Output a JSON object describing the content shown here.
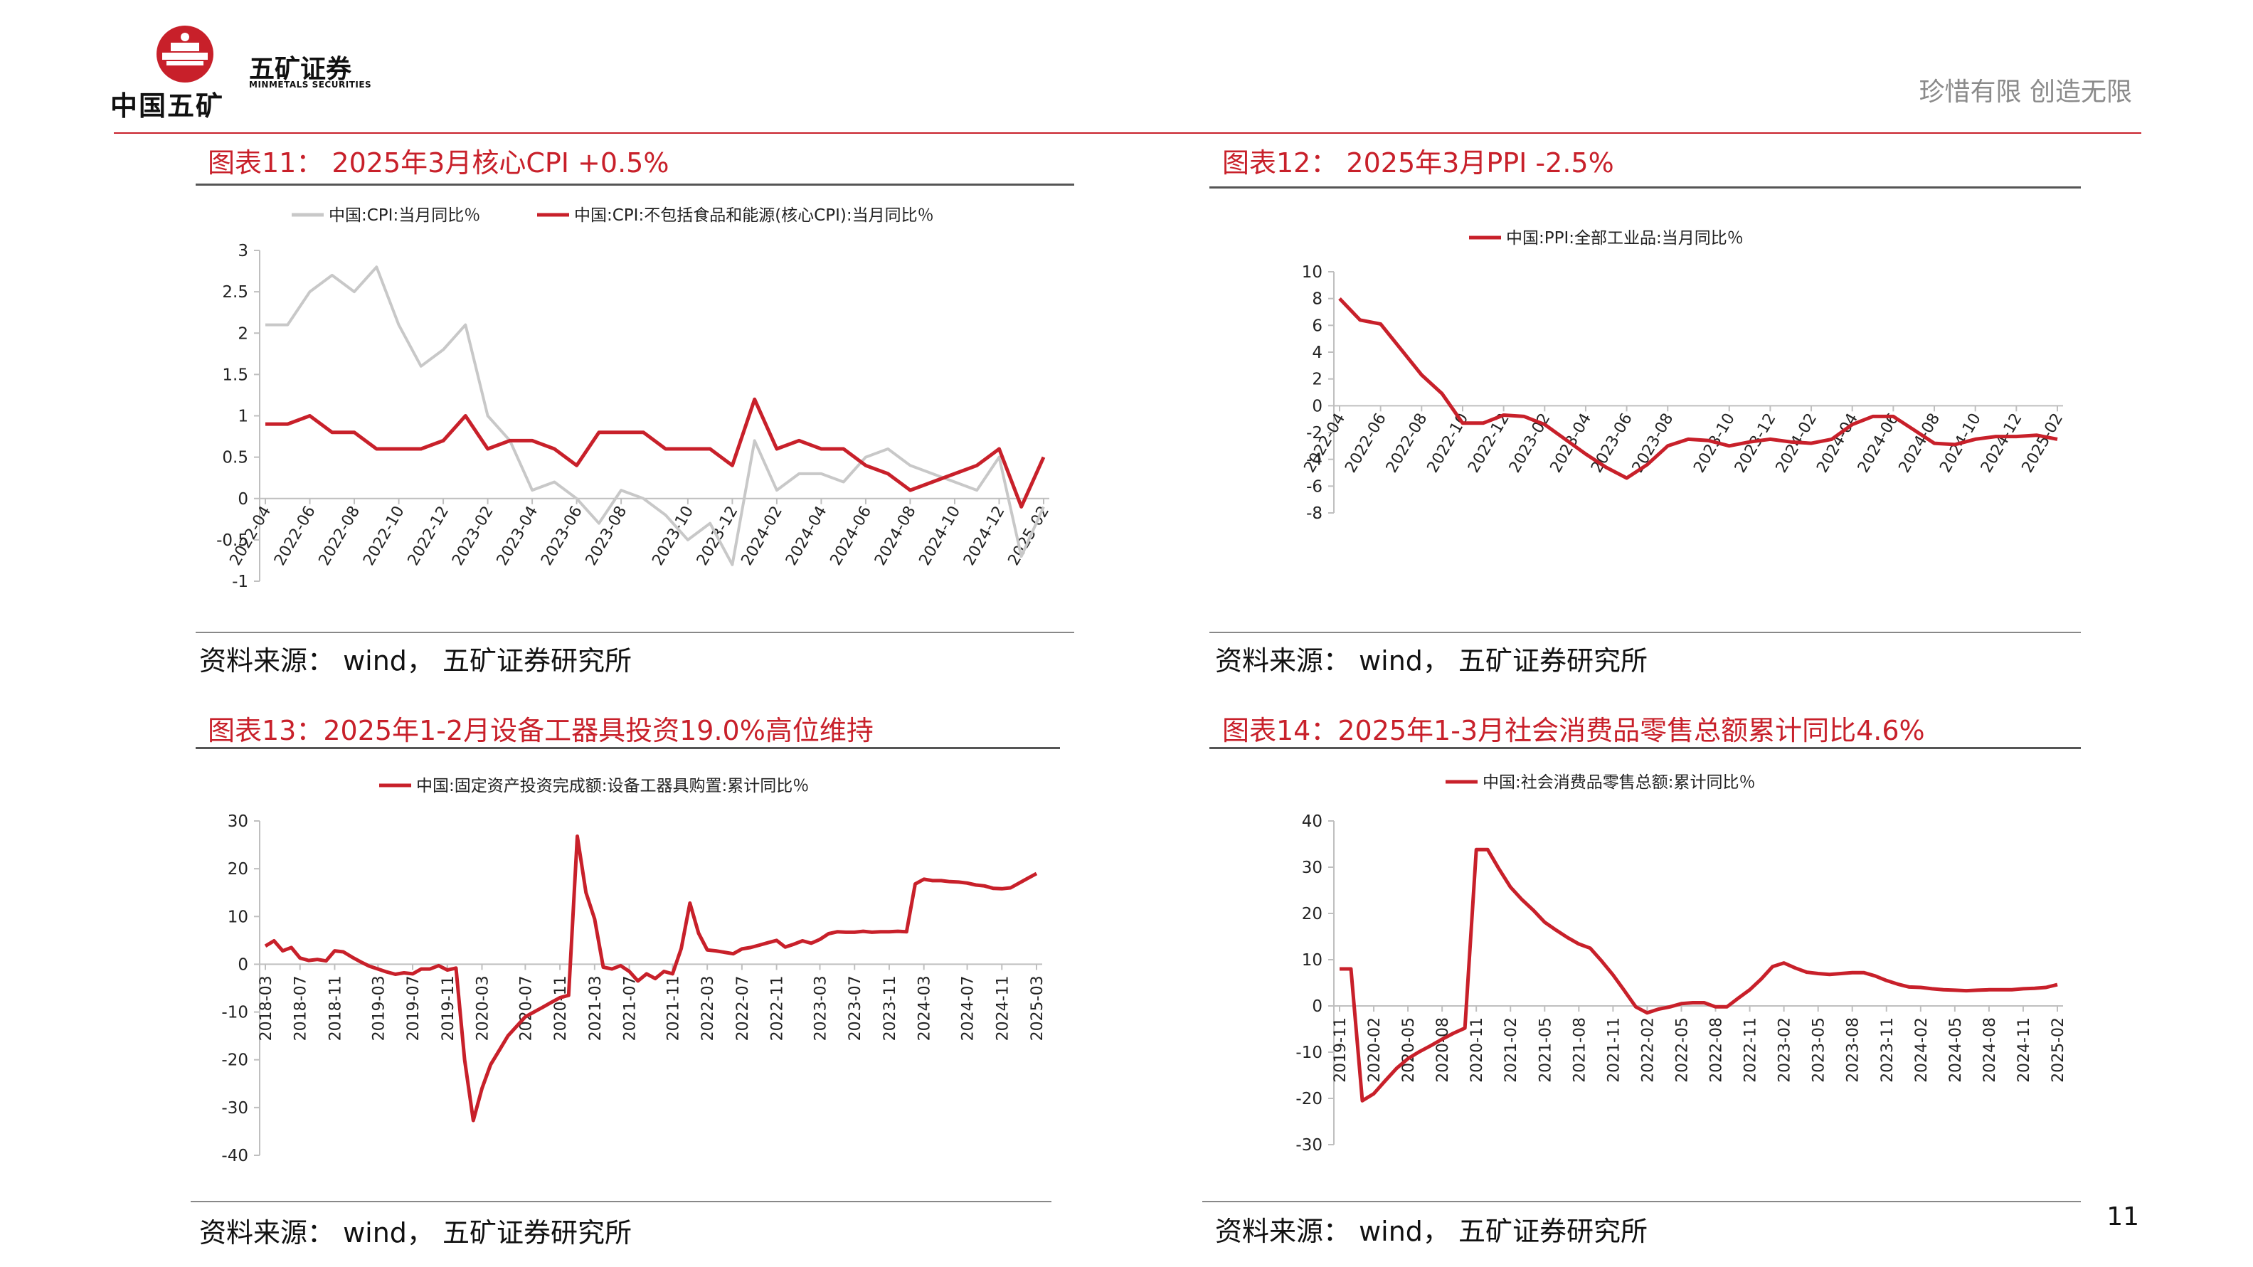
{
  "header": {
    "logo_cn": "中国五矿",
    "brand": "五矿证券",
    "brand_en": "MINMETALS SECURITIES",
    "slogan": "珍惜有限  创造无限",
    "page_number": "11",
    "accent_color": "#c8202a"
  },
  "panels": [
    {
      "title": "图表11： 2025年3月核心CPI +0.5%",
      "source": "资料来源： wind， 五矿证券研究所"
    },
    {
      "title": "图表12： 2025年3月PPI -2.5%",
      "source": "资料来源： wind， 五矿证券研究所"
    },
    {
      "title": "图表13：2025年1-2月设备工器具投资19.0%高位维持",
      "source": "资料来源： wind， 五矿证券研究所"
    },
    {
      "title": "图表14：2025年1-3月社会消费品零售总额累计同比4.6%",
      "source": "资料来源： wind， 五矿证券研究所"
    }
  ],
  "chart_data": [
    {
      "type": "line",
      "ylim": [
        -1,
        3
      ],
      "yticks": [
        "3",
        "2.5",
        "2",
        "1.5",
        "1",
        "0.5",
        "0",
        "-0.5",
        "-1"
      ],
      "x": [
        "2022-04",
        "2022-05",
        "2022-06",
        "2022-07",
        "2022-08",
        "2022-09",
        "2022-10",
        "2022-11",
        "2022-12",
        "2023-01",
        "2023-02",
        "2023-03",
        "2023-04",
        "2023-05",
        "2023-06",
        "2023-07",
        "2023-08",
        "2023-09",
        "2023-10",
        "2023-11",
        "2023-12",
        "2024-01",
        "2024-02",
        "2024-03",
        "2024-04",
        "2024-05",
        "2024-06",
        "2024-07",
        "2024-08",
        "2024-09",
        "2024-10",
        "2024-11",
        "2024-12",
        "2025-01",
        "2025-02",
        "2025-03"
      ],
      "xtick_labels": [
        "2022-04",
        "2022-06",
        "2022-08",
        "2022-10",
        "2022-12",
        "2023-02",
        "2023-04",
        "2023-06",
        "2023-08",
        "2023-10",
        "2023-12",
        "2024-02",
        "2024-04",
        "2024-06",
        "2024-08",
        "2024-10",
        "2024-12",
        "2025-02"
      ],
      "series": [
        {
          "name": "中国:CPI:当月同比％",
          "color": "#c8c8c8",
          "values": [
            2.1,
            2.1,
            2.5,
            2.7,
            2.5,
            2.8,
            2.1,
            1.6,
            1.8,
            2.1,
            1.0,
            0.7,
            0.1,
            0.2,
            0.0,
            -0.3,
            0.1,
            0.0,
            -0.2,
            -0.5,
            -0.3,
            -0.8,
            0.7,
            0.1,
            0.3,
            0.3,
            0.2,
            0.5,
            0.6,
            0.4,
            0.3,
            0.2,
            0.1,
            0.5,
            -0.7,
            -0.1
          ]
        },
        {
          "name": "中国:CPI:不包括食品和能源(核心CPI):当月同比％",
          "color": "#c8202a",
          "values": [
            0.9,
            0.9,
            1.0,
            0.8,
            0.8,
            0.6,
            0.6,
            0.6,
            0.7,
            1.0,
            0.6,
            0.7,
            0.7,
            0.6,
            0.4,
            0.8,
            0.8,
            0.8,
            0.6,
            0.6,
            0.6,
            0.4,
            1.2,
            0.6,
            0.7,
            0.6,
            0.6,
            0.4,
            0.3,
            0.1,
            0.2,
            0.3,
            0.4,
            0.6,
            -0.1,
            0.5
          ]
        }
      ]
    },
    {
      "type": "line",
      "ylim": [
        -8,
        10
      ],
      "yticks": [
        "10",
        "8",
        "6",
        "4",
        "2",
        "0",
        "-2",
        "-4",
        "-6",
        "-8"
      ],
      "x": [
        "2022-04",
        "2022-05",
        "2022-06",
        "2022-07",
        "2022-08",
        "2022-09",
        "2022-10",
        "2022-11",
        "2022-12",
        "2023-01",
        "2023-02",
        "2023-03",
        "2023-04",
        "2023-05",
        "2023-06",
        "2023-07",
        "2023-08",
        "2023-09",
        "2023-10",
        "2023-11",
        "2023-12",
        "2024-01",
        "2024-02",
        "2024-03",
        "2024-04",
        "2024-05",
        "2024-06",
        "2024-07",
        "2024-08",
        "2024-09",
        "2024-10",
        "2024-11",
        "2024-12",
        "2025-01",
        "2025-02",
        "2025-03"
      ],
      "xtick_labels": [
        "2022-04",
        "2022-06",
        "2022-08",
        "2022-10",
        "2022-12",
        "2023-02",
        "2023-04",
        "2023-06",
        "2023-08",
        "2023-10",
        "2023-12",
        "2024-02",
        "2024-04",
        "2024-06",
        "2024-08",
        "2024-10",
        "2024-12",
        "2025-02"
      ],
      "series": [
        {
          "name": "中国:PPI:全部工业品:当月同比％",
          "color": "#c8202a",
          "values": [
            8.0,
            6.4,
            6.1,
            4.2,
            2.3,
            0.9,
            -1.3,
            -1.3,
            -0.7,
            -0.8,
            -1.4,
            -2.5,
            -3.6,
            -4.6,
            -5.4,
            -4.4,
            -3.0,
            -2.5,
            -2.6,
            -3.0,
            -2.7,
            -2.5,
            -2.7,
            -2.8,
            -2.5,
            -1.4,
            -0.8,
            -0.8,
            -1.8,
            -2.8,
            -2.9,
            -2.5,
            -2.3,
            -2.3,
            -2.2,
            -2.5
          ]
        }
      ]
    },
    {
      "type": "line",
      "ylim": [
        -40,
        30
      ],
      "yticks": [
        "30",
        "20",
        "10",
        "0",
        "-10",
        "-20",
        "-30",
        "-40"
      ],
      "xtick_labels": [
        "2018-03",
        "2018-07",
        "2018-11",
        "2019-03",
        "2019-07",
        "2019-11",
        "2020-03",
        "2020-07",
        "2020-11",
        "2021-03",
        "2021-07",
        "2021-11",
        "2022-03",
        "2022-07",
        "2022-11",
        "2023-03",
        "2023-07",
        "2023-11",
        "2024-03",
        "2024-07",
        "2024-11",
        "2025-03"
      ],
      "series": [
        {
          "name": "中国:固定资产投资完成额:设备工器具购置:累计同比％",
          "color": "#c8202a",
          "values": [
            3.8,
            4.9,
            2.8,
            3.5,
            1.3,
            0.8,
            1.0,
            0.7,
            2.8,
            2.6,
            1.5,
            0.5,
            -0.4,
            -1.0,
            -1.6,
            -2.1,
            -1.8,
            -2.0,
            -1.0,
            -1.0,
            -0.3,
            -1.2,
            -0.8,
            -20.0,
            -32.7,
            -26.0,
            -21.0,
            -18.0,
            -15.0,
            -13.0,
            -11.0,
            -10.0,
            -9.0,
            -8.0,
            -7.0,
            -6.5,
            26.8,
            15.0,
            9.5,
            -0.6,
            -1.0,
            -0.3,
            -1.5,
            -3.5,
            -2.0,
            -3.0,
            -1.5,
            -2.0,
            3.3,
            12.8,
            6.5,
            3.0,
            2.8,
            2.5,
            2.2,
            3.2,
            3.5,
            4.0,
            4.5,
            5.0,
            3.6,
            4.2,
            4.9,
            4.4,
            5.2,
            6.4,
            6.8,
            6.7,
            6.7,
            6.9,
            6.7,
            6.8,
            6.8,
            6.9,
            6.8,
            16.8,
            17.8,
            17.5,
            17.5,
            17.3,
            17.2,
            17.0,
            16.6,
            16.4,
            15.9,
            15.8,
            16.0,
            17.0,
            18.0,
            19.0
          ]
        }
      ]
    },
    {
      "type": "line",
      "ylim": [
        -30,
        40
      ],
      "yticks": [
        "40",
        "30",
        "20",
        "10",
        "0",
        "-10",
        "-20",
        "-30"
      ],
      "xtick_labels": [
        "2019-11",
        "2020-02",
        "2020-05",
        "2020-08",
        "2020-11",
        "2021-02",
        "2021-05",
        "2021-08",
        "2021-11",
        "2022-02",
        "2022-05",
        "2022-08",
        "2022-11",
        "2023-02",
        "2023-05",
        "2023-08",
        "2023-11",
        "2024-02",
        "2024-05",
        "2024-08",
        "2024-11",
        "2025-02"
      ],
      "series": [
        {
          "name": "中国:社会消费品零售总额:累计同比％",
          "color": "#c8202a",
          "values": [
            8.0,
            8.0,
            -20.5,
            -19.0,
            -16.2,
            -13.5,
            -11.4,
            -9.9,
            -8.6,
            -7.2,
            -5.9,
            -4.8,
            33.8,
            33.8,
            29.6,
            25.7,
            23.0,
            20.7,
            18.1,
            16.4,
            14.8,
            13.4,
            12.5,
            9.7,
            6.7,
            3.3,
            -0.2,
            -1.5,
            -0.7,
            -0.2,
            0.5,
            0.7,
            0.7,
            -0.2,
            -0.2,
            1.7,
            3.5,
            5.8,
            8.5,
            9.3,
            8.2,
            7.3,
            7.0,
            6.8,
            7.0,
            7.2,
            7.2,
            6.5,
            5.5,
            4.7,
            4.1,
            4.0,
            3.7,
            3.5,
            3.4,
            3.3,
            3.4,
            3.5,
            3.5,
            3.5,
            3.7,
            3.8,
            4.0,
            4.6
          ]
        }
      ]
    }
  ]
}
